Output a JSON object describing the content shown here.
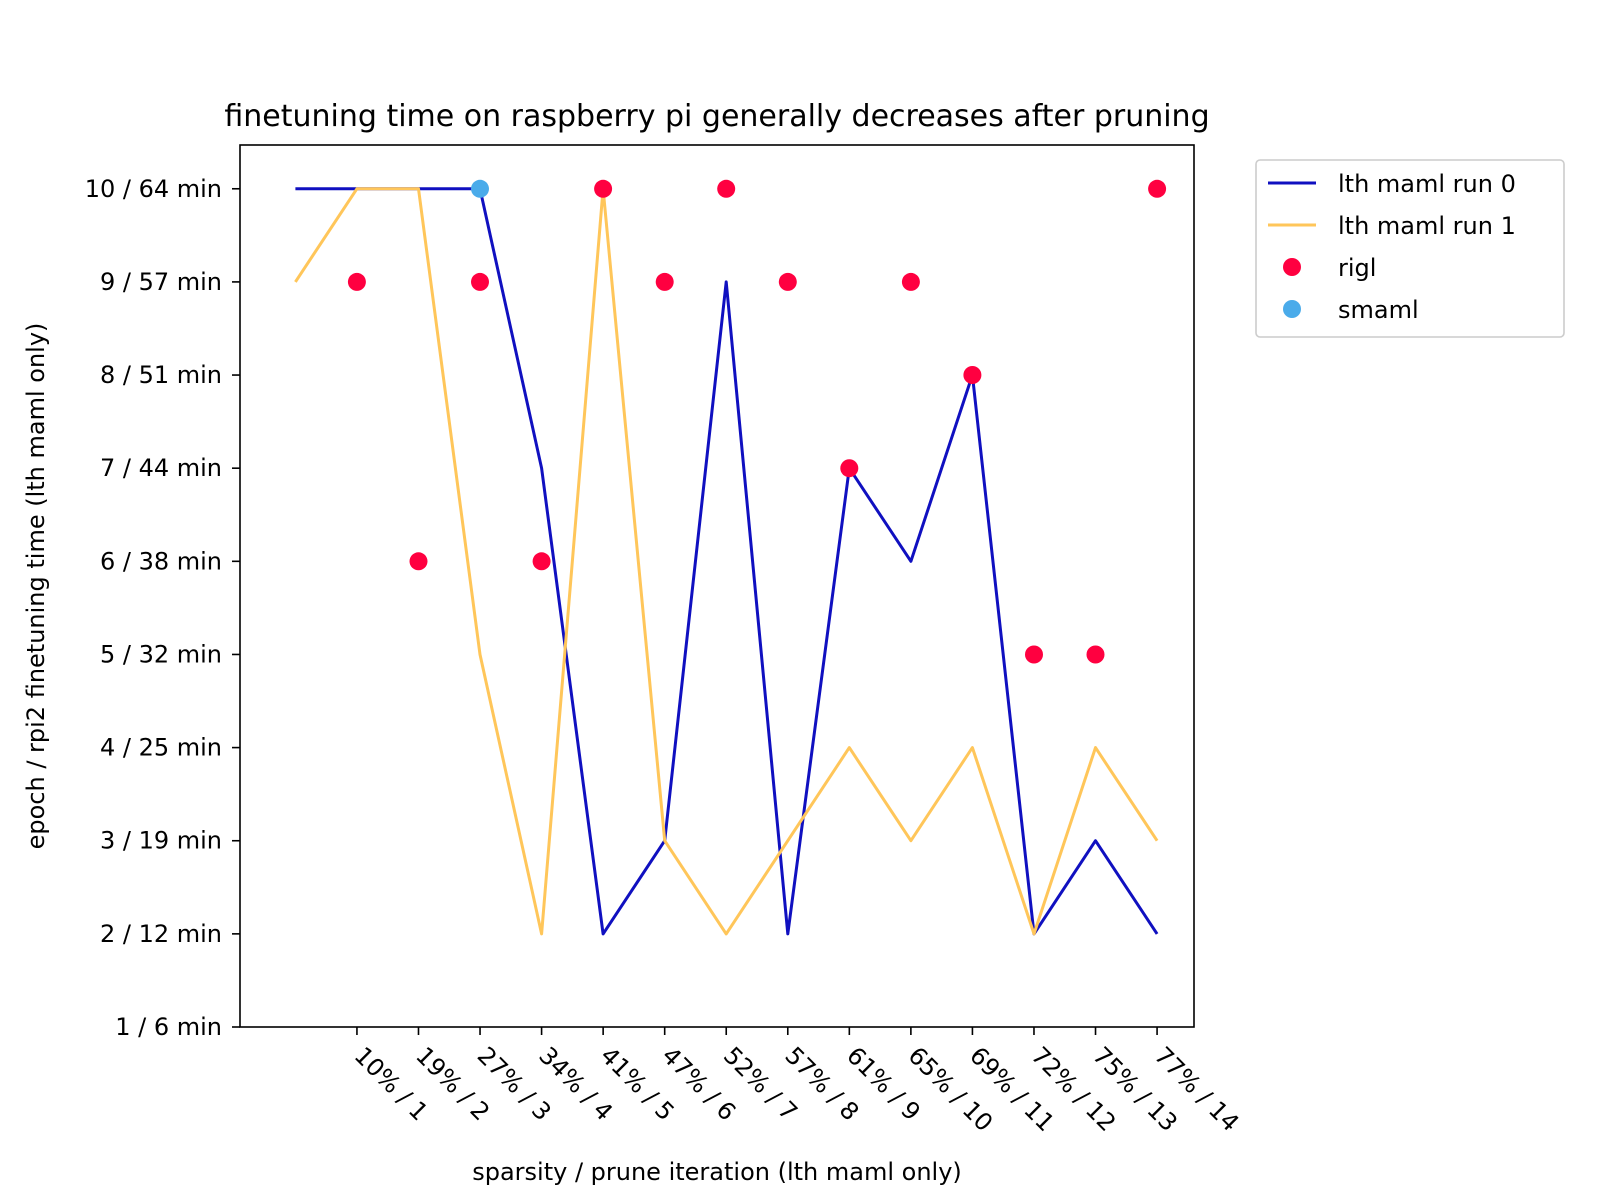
{
  "chart_data": {
    "type": "line",
    "title": "finetuning time on raspberry pi generally decreases after pruning",
    "xlabel": "sparsity / prune iteration (lth maml only)",
    "ylabel": "epoch / rpi2 finetuning time (lth maml only)",
    "x_ticks": [
      1,
      2,
      3,
      4,
      5,
      6,
      7,
      8,
      9,
      10,
      11,
      12,
      13,
      14
    ],
    "x_tick_labels": [
      "10% / 1",
      "19% / 2",
      "27% / 3",
      "34% / 4",
      "41% / 5",
      "47% / 6",
      "52% / 7",
      "57% / 8",
      "61% / 9",
      "65% / 10",
      "69% / 11",
      "72% / 12",
      "75% / 13",
      "77% / 14"
    ],
    "y_ticks": [
      1,
      2,
      3,
      4,
      5,
      6,
      7,
      8,
      9,
      10
    ],
    "y_tick_labels": [
      "1 / 6 min",
      "2 / 12 min",
      "3 / 19 min",
      "4 / 25 min",
      "5 / 32 min",
      "6 / 38 min",
      "7 / 44 min",
      "8 / 51 min",
      "9 / 57 min",
      "10 / 64 min"
    ],
    "xlim": [
      -0.9,
      14.6
    ],
    "ylim": [
      1,
      10.47
    ],
    "grid": false,
    "legend_position": "outside-top-right",
    "series": [
      {
        "name": "lth maml run 0",
        "kind": "line",
        "color": "#1010c0",
        "x": [
          0,
          1,
          2,
          3,
          4,
          5,
          6,
          7,
          8,
          9,
          10,
          11,
          12,
          13,
          14
        ],
        "y": [
          10,
          10,
          10,
          10,
          7,
          2,
          3,
          9,
          2,
          7,
          6,
          8,
          2,
          3,
          2
        ]
      },
      {
        "name": "lth maml run 1",
        "kind": "line",
        "color": "#ffc65a",
        "x": [
          0,
          1,
          2,
          3,
          4,
          5,
          6,
          7,
          8,
          9,
          10,
          11,
          12,
          13,
          14
        ],
        "y": [
          9,
          10,
          10,
          5,
          2,
          10,
          3,
          2,
          3,
          4,
          3,
          4,
          2,
          4,
          3
        ]
      },
      {
        "name": "rigl",
        "kind": "scatter",
        "color": "#ff0040",
        "x": [
          1,
          2,
          3,
          4,
          5,
          6,
          7,
          8,
          9,
          10,
          11,
          12,
          13,
          14
        ],
        "y": [
          9,
          6,
          9,
          6,
          10,
          9,
          10,
          9,
          7,
          9,
          8,
          5,
          5,
          10
        ]
      },
      {
        "name": "smaml",
        "kind": "scatter",
        "color": "#4aabea",
        "x": [
          3
        ],
        "y": [
          10
        ]
      }
    ]
  }
}
